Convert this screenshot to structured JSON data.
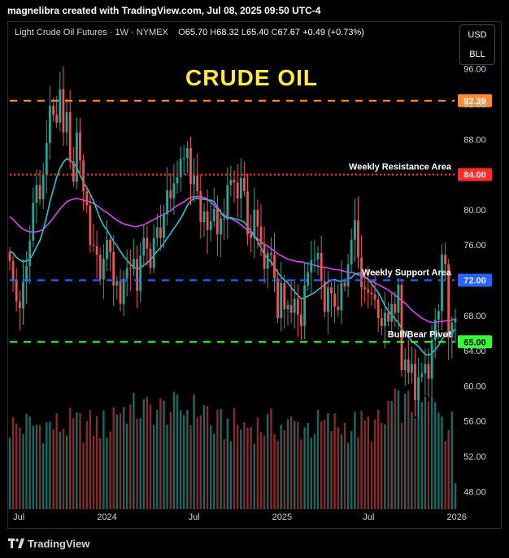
{
  "header": {
    "text": "magnelibra created with TradingView.com, Jul 08, 2025 09:50 UTC-4"
  },
  "legend": {
    "symbol": "Light Crude Oil Futures · 1W · NYMEX",
    "o_label": "O",
    "o": "65.70",
    "h_label": "H",
    "h": "68.32",
    "l_label": "L",
    "l": "65.40",
    "c_label": "C",
    "c": "67.67",
    "change": "+0.49 (+0.73%)"
  },
  "units": {
    "currency": "USD",
    "unit": "BLL"
  },
  "footer": {
    "brand": "TradingView"
  },
  "chart_data": {
    "type": "candlestick",
    "title": "CRUDE  OIL",
    "ylim": [
      46.0,
      100.5
    ],
    "y_ticks": [
      48,
      52,
      56,
      60,
      64,
      68,
      72,
      76,
      80,
      84,
      88,
      92,
      96
    ],
    "x_ticks": [
      {
        "label": "Jul",
        "date": "2023-07"
      },
      {
        "label": "2024",
        "date": "2024-01"
      },
      {
        "label": "Jul",
        "date": "2024-07"
      },
      {
        "label": "2025",
        "date": "2025-01"
      },
      {
        "label": "Jul",
        "date": "2025-07"
      },
      {
        "label": "2026",
        "date": "2026-01"
      }
    ],
    "levels": [
      {
        "value": 92.39,
        "label": "92.39",
        "annotation": "",
        "color": "#ff8a34",
        "style": "dashed"
      },
      {
        "value": 84.0,
        "label": "84.00",
        "annotation": "Weekly Resistance Area",
        "color": "#ff2b2b",
        "style": "dotted"
      },
      {
        "value": 72.0,
        "label": "72.00",
        "annotation": "Weekly Support Area",
        "color": "#2962ff",
        "style": "dashed"
      },
      {
        "value": 65.0,
        "label": "65.00",
        "annotation": "Bull/Bear Pivot",
        "color": "#33ff33",
        "style": "dashed"
      }
    ],
    "closes": [
      74.2,
      72.1,
      69.6,
      68.8,
      71.8,
      73.6,
      76.5,
      80.8,
      82.8,
      81.2,
      84.0,
      87.6,
      91.8,
      90.8,
      89.9,
      93.7,
      88.8,
      91.1,
      85.5,
      83.2,
      88.8,
      85.6,
      82.1,
      80.5,
      76.0,
      75.9,
      74.9,
      72.1,
      74.4,
      76.6,
      75.2,
      71.4,
      71.9,
      69.3,
      72.2,
      73.4,
      73.3,
      74.4,
      70.8,
      74.8,
      76.8,
      75.6,
      73.4,
      76.8,
      78.0,
      76.8,
      79.5,
      82.2,
      81.3,
      83.0,
      83.7,
      85.8,
      85.9,
      87.0,
      82.9,
      83.9,
      82.1,
      78.6,
      79.8,
      77.7,
      78.7,
      80.1,
      77.2,
      79.0,
      78.9,
      82.8,
      83.4,
      83.1,
      81.3,
      83.6,
      82.1,
      77.2,
      76.8,
      80.0,
      78.1,
      76.1,
      73.3,
      75.1,
      74.9,
      72.2,
      67.7,
      71.7,
      68.7,
      69.2,
      68.3,
      69.9,
      68.1,
      66.8,
      71.4,
      72.9,
      74.3,
      74.4,
      75.1,
      71.9,
      68.4,
      71.2,
      70.5,
      69.0,
      68.6,
      71.7,
      71.3,
      73.8,
      76.6,
      78.8,
      74.6,
      71.2,
      71.0,
      70.6,
      70.4,
      69.8,
      67.7,
      66.8,
      68.3,
      67.3,
      69.3,
      68.3,
      71.5,
      61.8,
      63.0,
      61.5,
      62.5,
      58.4,
      61.0,
      61.4,
      62.5,
      60.8,
      65.2,
      67.5,
      68.5,
      74.9,
      73.8,
      65.5,
      67.2,
      67.67
    ],
    "sma_fast": [
      75.3,
      75.1,
      74.6,
      74.3,
      74.1,
      74.2,
      74.4,
      75.0,
      75.8,
      76.5,
      77.7,
      79.2,
      80.9,
      82.3,
      83.7,
      84.7,
      85.4,
      85.8,
      85.6,
      85.3,
      84.8,
      84.0,
      83.1,
      82.5,
      81.8,
      81.0,
      80.0,
      79.0,
      78.2,
      77.7,
      77.1,
      76.4,
      75.9,
      75.3,
      74.7,
      74.3,
      73.8,
      73.5,
      73.3,
      73.4,
      73.7,
      74.0,
      74.3,
      74.8,
      75.3,
      75.7,
      76.2,
      76.8,
      77.3,
      77.9,
      78.4,
      79.0,
      79.7,
      80.5,
      81.0,
      81.3,
      81.3,
      81.2,
      81.2,
      81.1,
      81.1,
      80.9,
      80.3,
      79.7,
      79.2,
      79.1,
      79.1,
      79.0,
      78.9,
      78.8,
      78.6,
      78.1,
      77.6,
      77.1,
      76.4,
      75.7,
      74.9,
      74.5,
      74.1,
      73.5,
      72.9,
      72.4,
      72.0,
      71.7,
      71.2,
      70.7,
      70.3,
      69.9,
      70.0,
      70.2,
      70.4,
      70.6,
      70.9,
      71.2,
      71.5,
      71.8,
      72.0,
      72.1,
      71.9,
      71.9,
      71.9,
      72.1,
      72.3,
      72.7,
      72.8,
      72.8,
      72.4,
      72.1,
      71.6,
      71.1,
      70.6,
      69.9,
      69.1,
      68.5,
      68.1,
      67.6,
      67.2,
      66.5,
      66.0,
      65.5,
      65.1,
      64.8,
      64.5,
      64.0,
      63.6,
      63.5,
      63.7,
      64.1,
      64.6,
      65.3,
      65.8,
      65.8,
      66.0,
      66.5
    ],
    "sma_slow": [
      79.2,
      78.9,
      78.5,
      78.1,
      77.8,
      77.6,
      77.5,
      77.5,
      77.5,
      77.6,
      77.8,
      78.2,
      78.6,
      79.1,
      79.6,
      80.1,
      80.5,
      80.9,
      81.1,
      81.2,
      81.3,
      81.2,
      81.1,
      81.0,
      80.9,
      80.7,
      80.5,
      80.2,
      79.9,
      79.7,
      79.4,
      79.1,
      78.8,
      78.6,
      78.4,
      78.3,
      78.2,
      78.1,
      78.1,
      78.2,
      78.3,
      78.5,
      78.7,
      78.9,
      79.1,
      79.3,
      79.5,
      79.7,
      79.9,
      80.2,
      80.5,
      80.7,
      80.9,
      81.2,
      81.4,
      81.5,
      81.5,
      81.5,
      81.4,
      81.2,
      80.9,
      80.5,
      80.1,
      79.7,
      79.4,
      79.2,
      79.0,
      78.8,
      78.6,
      78.3,
      78.0,
      77.7,
      77.3,
      77.0,
      76.7,
      76.4,
      76.1,
      75.9,
      75.6,
      75.3,
      75.0,
      74.8,
      74.6,
      74.4,
      74.3,
      74.2,
      74.1,
      74.1,
      74.0,
      73.9,
      73.8,
      73.7,
      73.6,
      73.5,
      73.5,
      73.4,
      73.3,
      73.2,
      73.2,
      73.1,
      73.0,
      72.9,
      72.9,
      72.8,
      72.6,
      72.5,
      72.3,
      72.1,
      71.9,
      71.7,
      71.5,
      71.3,
      71.1,
      70.9,
      70.6,
      70.3,
      70.0,
      69.7,
      69.4,
      69.0,
      68.6,
      68.3,
      68.0,
      67.7,
      67.5,
      67.3,
      67.2,
      67.2,
      67.3,
      67.3,
      67.4,
      67.4,
      67.5,
      67.6
    ]
  }
}
